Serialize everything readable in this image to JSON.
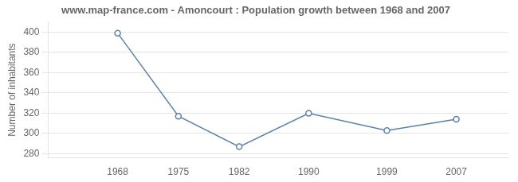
{
  "chart_data": {
    "type": "line",
    "title": "www.map-france.com - Amoncourt : Population growth between 1968 and 2007",
    "x": [
      1968,
      1975,
      1982,
      1990,
      1999,
      2007
    ],
    "values": [
      399,
      317,
      287,
      320,
      303,
      314
    ],
    "ylabel": "Number of inhabitants",
    "xlim": [
      1960,
      2013
    ],
    "xticks": [
      1968,
      1975,
      1982,
      1990,
      1999,
      2007
    ],
    "ylim": [
      276,
      410
    ],
    "yticks": [
      280,
      300,
      320,
      340,
      360,
      380,
      400
    ],
    "color": "#5580b8",
    "marker": "o",
    "grid": true
  }
}
